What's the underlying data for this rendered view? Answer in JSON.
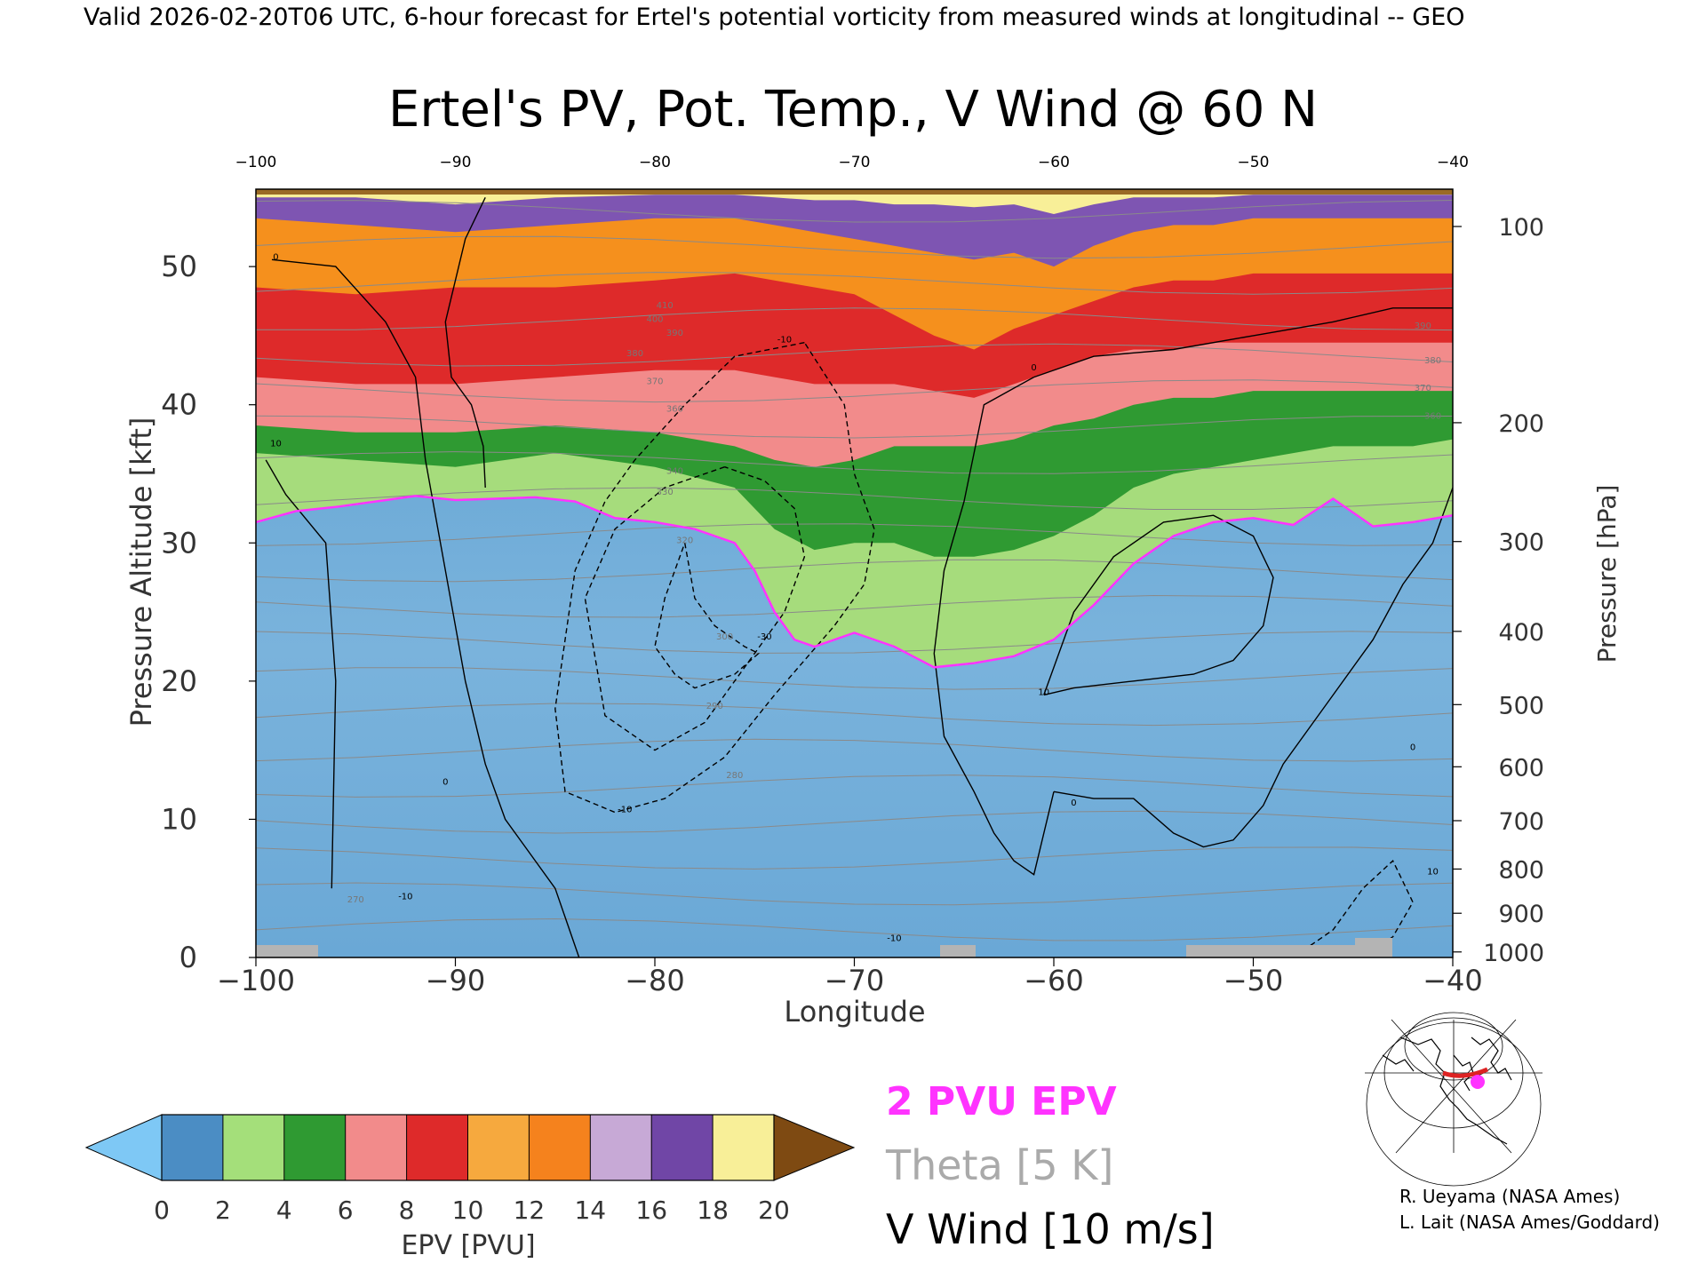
{
  "header": {
    "valid_line": "Valid 2026-02-20T06 UTC, 6-hour forecast for Ertel's potential vorticity from measured winds at longitudinal -- GEO"
  },
  "chart_data": {
    "type": "heatmap",
    "title": "Ertel's PV, Pot. Temp., V Wind @ 60 N",
    "xlabel": "Longitude",
    "ylabel_left": "Pressure Altitude [kft]",
    "ylabel_right": "Pressure [hPa]",
    "xlim": [
      -100,
      -40
    ],
    "ylim": [
      0,
      55.6
    ],
    "x_ticks": [
      -100,
      -90,
      -80,
      -70,
      -60,
      -50,
      -40
    ],
    "x_tick_labels": [
      "−100",
      "−90",
      "−80",
      "−70",
      "−60",
      "−50",
      "−40"
    ],
    "top_ticks": [
      -100,
      -90,
      -80,
      -70,
      -60,
      -50,
      -40
    ],
    "top_tick_labels": [
      "−100",
      "−90",
      "−80",
      "−70",
      "−60",
      "−50",
      "−40"
    ],
    "y_ticks": [
      0,
      10,
      20,
      30,
      40,
      50
    ],
    "y_tick_labels": [
      "0",
      "10",
      "20",
      "30",
      "40",
      "50"
    ],
    "pressure_ticks": [
      {
        "hpa": 100,
        "label": "100",
        "kft": 52.9
      },
      {
        "hpa": 200,
        "label": "200",
        "kft": 38.7
      },
      {
        "hpa": 300,
        "label": "300",
        "kft": 30.1
      },
      {
        "hpa": 400,
        "label": "400",
        "kft": 23.6
      },
      {
        "hpa": 500,
        "label": "500",
        "kft": 18.3
      },
      {
        "hpa": 600,
        "label": "600",
        "kft": 13.8
      },
      {
        "hpa": 700,
        "label": "700",
        "kft": 9.9
      },
      {
        "hpa": 800,
        "label": "800",
        "kft": 6.4
      },
      {
        "hpa": 900,
        "label": "900",
        "kft": 3.2
      },
      {
        "hpa": 1000,
        "label": "1000",
        "kft": 0.4
      }
    ],
    "epv_levels": [
      0,
      2,
      4,
      6,
      8,
      10,
      12,
      14,
      16,
      18,
      20
    ],
    "epv_colors": [
      "#4b8dc4",
      "#a4df7a",
      "#2f9a32",
      "#f28b8b",
      "#de2a2a",
      "#f6a93e",
      "#f5821d",
      "#c7a9d6",
      "#7046a6",
      "#f8ef98",
      "#7e4a12"
    ],
    "epv_under_color": "#7ec8f5",
    "epv_over_color": "#7e4a12",
    "tropopause_2pvu": {
      "x": [
        -100,
        -98,
        -96,
        -94,
        -92,
        -90,
        -88,
        -86,
        -84,
        -82,
        -80,
        -78,
        -76,
        -75,
        -74,
        -73,
        -72,
        -70,
        -68,
        -66,
        -64,
        -62,
        -60,
        -58,
        -56,
        -54,
        -52,
        -50,
        -48,
        -46,
        -44,
        -42,
        -40
      ],
      "y": [
        31.5,
        32.3,
        32.6,
        33.0,
        33.4,
        33.1,
        33.2,
        33.3,
        33.0,
        31.8,
        31.5,
        31.0,
        30.0,
        28.0,
        25.0,
        23.0,
        22.5,
        23.5,
        22.5,
        21.0,
        21.3,
        21.8,
        23.0,
        25.5,
        28.5,
        30.5,
        31.5,
        31.8,
        31.3,
        33.2,
        31.2,
        31.5,
        32.0
      ],
      "color": "#ff33ff"
    },
    "pv_bands": [
      {
        "name": "green",
        "color": "#2f9a32",
        "x": [
          -100,
          -95,
          -90,
          -85,
          -80,
          -76,
          -74,
          -72,
          -70,
          -68,
          -66,
          -64,
          -62,
          -60,
          -58,
          -56,
          -54,
          -52,
          -50,
          -48,
          -46,
          -44,
          -42,
          -40
        ],
        "y": [
          36.5,
          36.0,
          35.5,
          36.5,
          35.5,
          34.0,
          31.0,
          29.5,
          30.0,
          30.0,
          29.0,
          29.0,
          29.5,
          30.5,
          32.0,
          34.0,
          35.0,
          35.5,
          36.0,
          36.5,
          37.0,
          37.0,
          37.0,
          37.5
        ]
      },
      {
        "name": "pink",
        "color": "#f28b8b",
        "x": [
          -100,
          -95,
          -90,
          -85,
          -80,
          -76,
          -74,
          -72,
          -70,
          -68,
          -66,
          -64,
          -62,
          -60,
          -58,
          -56,
          -54,
          -52,
          -50,
          -48,
          -46,
          -44,
          -42,
          -40
        ],
        "y": [
          38.5,
          38.0,
          38.0,
          38.5,
          38.0,
          37.0,
          36.0,
          35.5,
          36.0,
          37.0,
          37.0,
          37.0,
          37.5,
          38.5,
          39.0,
          40.0,
          40.5,
          40.5,
          41.0,
          41.0,
          41.0,
          41.0,
          41.0,
          41.0
        ]
      },
      {
        "name": "red",
        "color": "#de2a2a",
        "x": [
          -100,
          -95,
          -90,
          -85,
          -80,
          -76,
          -74,
          -72,
          -70,
          -68,
          -66,
          -64,
          -62,
          -60,
          -58,
          -56,
          -54,
          -52,
          -50,
          -48,
          -46,
          -44,
          -42,
          -40
        ],
        "y": [
          42.0,
          41.5,
          41.5,
          42.0,
          42.5,
          42.5,
          42.0,
          41.5,
          41.5,
          41.5,
          41.0,
          40.5,
          41.5,
          42.5,
          43.5,
          44.0,
          44.0,
          44.5,
          44.5,
          44.5,
          44.5,
          44.5,
          44.5,
          44.5
        ]
      },
      {
        "name": "orange",
        "color": "#f5901d",
        "x": [
          -100,
          -95,
          -90,
          -85,
          -80,
          -76,
          -74,
          -72,
          -70,
          -68,
          -66,
          -64,
          -62,
          -60,
          -58,
          -56,
          -54,
          -52,
          -50,
          -48,
          -46,
          -44,
          -42,
          -40
        ],
        "y": [
          48.5,
          48.0,
          48.5,
          48.5,
          49.0,
          49.5,
          49.0,
          48.5,
          48.0,
          46.5,
          45.0,
          44.0,
          45.5,
          46.5,
          47.5,
          48.5,
          49.0,
          49.0,
          49.5,
          49.5,
          49.5,
          49.5,
          49.5,
          49.5
        ]
      },
      {
        "name": "purple",
        "color": "#7e55b2",
        "x": [
          -100,
          -95,
          -90,
          -85,
          -80,
          -76,
          -74,
          -72,
          -70,
          -68,
          -66,
          -64,
          -62,
          -60,
          -58,
          -56,
          -54,
          -52,
          -50,
          -48,
          -46,
          -44,
          -42,
          -40
        ],
        "y": [
          53.5,
          53.0,
          52.5,
          53.0,
          53.5,
          53.5,
          53.0,
          52.5,
          52.0,
          51.5,
          51.0,
          50.5,
          51.0,
          50.0,
          51.5,
          52.5,
          53.0,
          53.0,
          53.5,
          53.5,
          53.5,
          53.5,
          53.5,
          53.5
        ]
      },
      {
        "name": "yellow",
        "color": "#f8ef98",
        "x": [
          -100,
          -95,
          -90,
          -85,
          -80,
          -76,
          -74,
          -72,
          -70,
          -68,
          -66,
          -64,
          -62,
          -60,
          -58,
          -56,
          -54,
          -52,
          -50,
          -48,
          -46,
          -44,
          -42,
          -40
        ],
        "y": [
          55.0,
          55.0,
          54.5,
          55.0,
          55.2,
          55.2,
          55.0,
          54.8,
          54.8,
          54.5,
          54.5,
          54.3,
          54.5,
          53.8,
          54.5,
          55.0,
          55.0,
          55.0,
          55.2,
          55.2,
          55.2,
          55.2,
          55.2,
          55.2
        ]
      }
    ],
    "wind_contours": [
      {
        "label": "0",
        "style": "solid",
        "x": [
          -99.2,
          -96,
          -93.5,
          -92,
          -91.5,
          -90.5,
          -89.5,
          -88.5,
          -87.5,
          -86.5,
          -85,
          -83.8
        ],
        "y": [
          50.5,
          50.0,
          46.0,
          42.0,
          36.0,
          28.0,
          20.0,
          14.0,
          10.0,
          8.0,
          5.0,
          0.0
        ]
      },
      {
        "label": "0",
        "style": "solid",
        "x": [
          -88.5,
          -88.6,
          -89.2,
          -90.2,
          -90.5,
          -90.0,
          -89.5,
          -88.5
        ],
        "y": [
          34.0,
          37.0,
          40.0,
          42.0,
          46.0,
          49.0,
          52.0,
          55.0
        ]
      },
      {
        "label": "0",
        "style": "solid",
        "x": [
          -99.5,
          -98.5,
          -96.5,
          -96.0,
          -96.2
        ],
        "y": [
          36.0,
          33.5,
          30.0,
          20.0,
          5.0
        ]
      },
      {
        "label": "0",
        "style": "solid",
        "x": [
          -61.0,
          -63.5,
          -64.5,
          -65.5,
          -66.0,
          -65.5,
          -64.0,
          -63.0,
          -62.0,
          -61.0,
          -60.0
        ],
        "y": [
          42.0,
          40.0,
          33.0,
          28.0,
          22.0,
          16.0,
          12.0,
          9.0,
          7.0,
          6.0,
          12.0
        ]
      },
      {
        "label": "0",
        "style": "solid",
        "x": [
          -60.0,
          -58.0,
          -56.0,
          -54.0,
          -52.5,
          -51.0,
          -49.5,
          -48.5,
          -46.5,
          -44.0,
          -42.5,
          -41.0,
          -40.0
        ],
        "y": [
          12.0,
          11.5,
          11.5,
          9.0,
          8.0,
          8.5,
          11.0,
          14.0,
          18.0,
          23.0,
          27.0,
          30.0,
          34.0
        ]
      },
      {
        "label": "0",
        "style": "solid",
        "x": [
          -61.0,
          -58.0,
          -54.0,
          -50.0,
          -46.0,
          -43.0,
          -40.0
        ],
        "y": [
          42.0,
          43.5,
          44.0,
          45.0,
          46.0,
          47.0,
          47.0
        ]
      },
      {
        "label": "10",
        "style": "solid",
        "x": [
          -60.5,
          -59.0,
          -57.0,
          -54.5,
          -52.0,
          -50.0,
          -49.0,
          -49.5,
          -51.0,
          -53.0,
          -56.0,
          -59.0,
          -60.5
        ],
        "y": [
          19.0,
          25.0,
          29.0,
          31.5,
          32.0,
          30.5,
          27.5,
          24.0,
          21.5,
          20.5,
          20.0,
          19.5,
          19.0
        ]
      },
      {
        "label": "-10",
        "style": "dashed",
        "x": [
          -72.5,
          -76.0,
          -78.5,
          -81.0,
          -82.5,
          -84.0,
          -85.0,
          -84.5,
          -82.0,
          -79.5,
          -76.5,
          -74.0,
          -71.0,
          -69.5,
          -69.0,
          -70.0,
          -70.5,
          -72.5
        ],
        "y": [
          44.5,
          43.5,
          40.0,
          36.0,
          33.0,
          28.0,
          18.0,
          12.0,
          10.5,
          11.5,
          14.5,
          19.0,
          24.0,
          27.0,
          31.0,
          35.0,
          40.0,
          44.5
        ]
      },
      {
        "label": "-20",
        "style": "dashed",
        "x": [
          -76.5,
          -79.5,
          -82.0,
          -83.5,
          -82.5,
          -80.0,
          -77.5,
          -75.5,
          -73.5,
          -72.5,
          -73.0,
          -74.5,
          -76.5
        ],
        "y": [
          35.5,
          34.0,
          31.0,
          26.0,
          17.5,
          15.0,
          17.0,
          21.0,
          25.0,
          29.0,
          32.5,
          34.5,
          35.5
        ]
      },
      {
        "label": "-30",
        "style": "dashed",
        "x": [
          -78.5,
          -78.0,
          -77.0,
          -75.5,
          -74.8,
          -76.0,
          -78.0,
          -79.0,
          -80.0,
          -79.5,
          -78.5
        ],
        "y": [
          30.0,
          26.0,
          24.0,
          22.5,
          22.0,
          20.5,
          19.5,
          20.5,
          22.5,
          26.0,
          30.0
        ]
      },
      {
        "label": "-10",
        "style": "dashed",
        "x": [
          -47.5,
          -46.0,
          -44.5,
          -43.0,
          -42.0,
          -43.0,
          -44.0,
          -45.5
        ],
        "y": [
          0.5,
          2.0,
          5.0,
          7.0,
          4.0,
          1.5,
          0.5,
          0.5
        ]
      }
    ],
    "theta_levels": [
      250,
      260,
      270,
      280,
      290,
      300,
      310,
      320,
      330,
      340,
      350,
      360,
      370,
      380,
      390,
      400,
      410,
      420,
      430,
      440,
      450
    ],
    "theta_labels": [
      {
        "text": "410",
        "x": -79.5,
        "y": 47.0
      },
      {
        "text": "400",
        "x": -80.0,
        "y": 46.0
      },
      {
        "text": "390",
        "x": -79.0,
        "y": 45.0
      },
      {
        "text": "380",
        "x": -81.0,
        "y": 43.5
      },
      {
        "text": "370",
        "x": -80.0,
        "y": 41.5
      },
      {
        "text": "360",
        "x": -79.0,
        "y": 39.5
      },
      {
        "text": "340",
        "x": -79.0,
        "y": 35.0
      },
      {
        "text": "330",
        "x": -79.5,
        "y": 33.5
      },
      {
        "text": "320",
        "x": -78.5,
        "y": 30.0
      },
      {
        "text": "300",
        "x": -76.5,
        "y": 23.0
      },
      {
        "text": "290",
        "x": -77.0,
        "y": 18.0
      },
      {
        "text": "280",
        "x": -76.0,
        "y": 13.0
      },
      {
        "text": "270",
        "x": -95.0,
        "y": 4.0
      },
      {
        "text": "390",
        "x": -41.5,
        "y": 45.5
      },
      {
        "text": "380",
        "x": -41.0,
        "y": 43.0
      },
      {
        "text": "370",
        "x": -41.5,
        "y": 41.0
      },
      {
        "text": "360",
        "x": -41.0,
        "y": 39.0
      }
    ],
    "wind_contour_labels": [
      {
        "text": "0",
        "x": -99.0,
        "y": 50.5
      },
      {
        "text": "-10",
        "x": -73.5,
        "y": 44.5
      },
      {
        "text": "10",
        "x": -99.0,
        "y": 37.0
      },
      {
        "text": "0",
        "x": -90.5,
        "y": 12.5
      },
      {
        "text": "-10",
        "x": -81.5,
        "y": 10.5
      },
      {
        "text": "-30",
        "x": -74.5,
        "y": 23.0
      },
      {
        "text": "0",
        "x": -61.0,
        "y": 42.5
      },
      {
        "text": "10",
        "x": -60.5,
        "y": 19.0
      },
      {
        "text": "0",
        "x": -59.0,
        "y": 11.0
      },
      {
        "text": "0",
        "x": -42.0,
        "y": 15.0
      },
      {
        "text": "10",
        "x": -41.0,
        "y": 6.0
      },
      {
        "text": "-10",
        "x": -92.5,
        "y": 4.2
      },
      {
        "text": "-10",
        "x": -68.0,
        "y": 1.2
      }
    ],
    "colorbar": {
      "label": "EPV [PVU]",
      "tick_labels": [
        "0",
        "2",
        "4",
        "6",
        "8",
        "10",
        "12",
        "14",
        "16",
        "18",
        "20"
      ]
    },
    "legend": {
      "epv_line": "2 PVU EPV",
      "epv_line_color": "#ff33ff",
      "theta": "Theta [5 K]",
      "theta_color": "#aaaaaa",
      "vwind": "V Wind [10 m/s]"
    }
  },
  "credits": {
    "line1": "R. Ueyama (NASA Ames)",
    "line2": "L. Lait (NASA Ames/Goddard)"
  },
  "map_inset": {
    "marker_color": "#ff33ff",
    "track_color": "#dd2222"
  }
}
